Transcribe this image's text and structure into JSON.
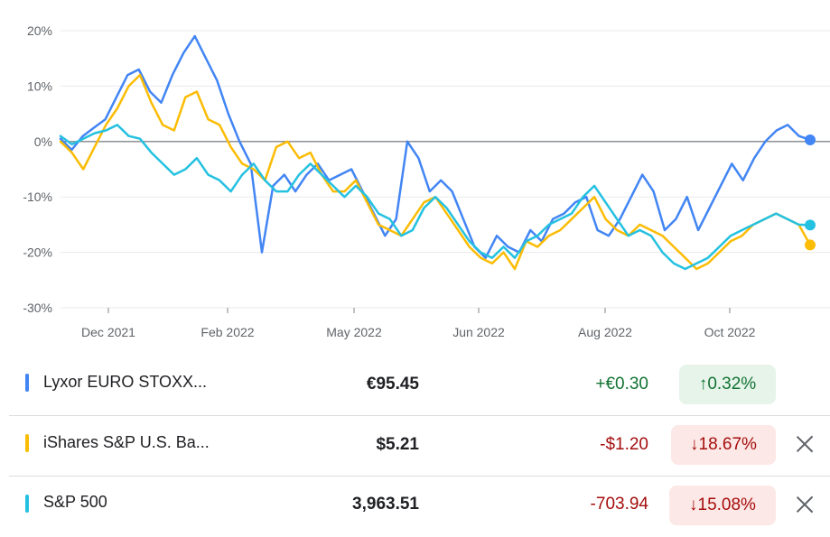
{
  "chart_data": {
    "type": "line",
    "x_ticks": [
      "Dec 2021",
      "Feb 2022",
      "May 2022",
      "Jun 2022",
      "Aug 2022",
      "Oct 2022"
    ],
    "y_ticks": [
      "20%",
      "10%",
      "0%",
      "-10%",
      "-20%",
      "-30%"
    ],
    "ylim": [
      -30,
      20
    ],
    "y_unit": "%",
    "grid": true,
    "series": [
      {
        "name": "Lyxor EURO STOXX...",
        "color": "#4285f4",
        "values": [
          0.5,
          -1.5,
          1,
          2.5,
          4,
          8,
          12,
          13,
          9,
          7,
          12,
          16,
          19,
          15,
          11,
          5,
          0,
          -4,
          -20,
          -8,
          -6,
          -9,
          -6,
          -4,
          -7,
          -6,
          -5,
          -9,
          -13,
          -17,
          -14,
          0,
          -3,
          -9,
          -7,
          -9,
          -14,
          -19,
          -21,
          -17,
          -19,
          -20,
          -16,
          -18,
          -14,
          -13,
          -11,
          -10,
          -16,
          -17,
          -14,
          -10,
          -6,
          -9,
          -16,
          -14,
          -10,
          -16,
          -12,
          -8,
          -4,
          -7,
          -3,
          0,
          2,
          3,
          1,
          0.3
        ]
      },
      {
        "name": "iShares S&P U.S. Ba...",
        "color": "#fbbc04",
        "values": [
          0,
          -2,
          -5,
          -1,
          3,
          6,
          10,
          12,
          7,
          3,
          2,
          8,
          9,
          4,
          3,
          -1,
          -4,
          -5,
          -7,
          -1,
          0,
          -3,
          -2,
          -6,
          -9,
          -9,
          -7,
          -11,
          -15,
          -16,
          -17,
          -14,
          -11,
          -10,
          -13,
          -16,
          -19,
          -21,
          -22,
          -20,
          -23,
          -18,
          -19,
          -17,
          -16,
          -14,
          -12,
          -10,
          -14,
          -16,
          -17,
          -15,
          -16,
          -17,
          -19,
          -21,
          -23,
          -22,
          -20,
          -18,
          -17,
          -15,
          -14,
          -13,
          -14,
          -15,
          -18.67
        ]
      },
      {
        "name": "S&P 500",
        "color": "#24c1e0",
        "values": [
          1,
          -0.5,
          0.5,
          1.5,
          2,
          3,
          1,
          0.5,
          -2,
          -4,
          -6,
          -5,
          -3,
          -6,
          -7,
          -9,
          -6,
          -4,
          -7,
          -9,
          -9,
          -6,
          -4,
          -6,
          -8,
          -10,
          -8,
          -10,
          -13,
          -14,
          -17,
          -16,
          -12,
          -10,
          -12,
          -15,
          -18,
          -20,
          -21,
          -19,
          -21,
          -18,
          -17,
          -15,
          -14,
          -13,
          -10,
          -8,
          -11,
          -14,
          -17,
          -16,
          -17,
          -20,
          -22,
          -23,
          -22,
          -21,
          -19,
          -17,
          -16,
          -15,
          -14,
          -13,
          -14,
          -15,
          -15.08
        ]
      }
    ]
  },
  "rows": [
    {
      "name": "Lyxor EURO STOXX...",
      "price": "€95.45",
      "change": "+€0.30",
      "pct": "0.32%",
      "direction": "up",
      "color": "#4285f4",
      "removable": false
    },
    {
      "name": "iShares S&P U.S. Ba...",
      "price": "$5.21",
      "change": "-$1.20",
      "pct": "18.67%",
      "direction": "down",
      "color": "#fbbc04",
      "removable": true
    },
    {
      "name": "S&P 500",
      "price": "3,963.51",
      "change": "-703.94",
      "pct": "15.08%",
      "direction": "down",
      "color": "#24c1e0",
      "removable": true
    }
  ],
  "colors": {
    "up_text": "#137333",
    "up_bg": "#e6f4ea",
    "down_text": "#a50e0e",
    "down_bg": "#fce8e6"
  },
  "icons": {
    "up": "arrow-up-icon",
    "down": "arrow-down-icon",
    "remove": "close-icon"
  }
}
